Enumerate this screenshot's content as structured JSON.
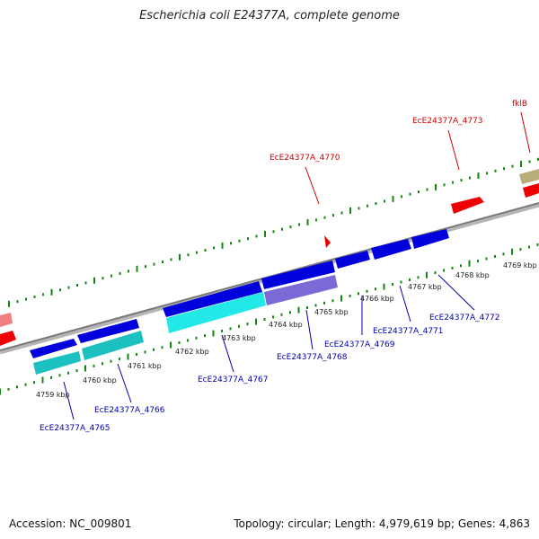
{
  "title": "Escherichia coli E24377A, complete genome",
  "footer": {
    "accession": "Accession: NC_009801",
    "summary": "Topology: circular; Length: 4,979,619 bp; Genes: 4,863"
  },
  "colors": {
    "forward_label": "#cc0000",
    "reverse_label": "#0000aa",
    "tick": "#118811",
    "backbone": "#8c8c8c"
  },
  "kbp_labels": [
    "4759 kbp",
    "4760 kbp",
    "4761 kbp",
    "4762 kbp",
    "4763 kbp",
    "4764 kbp",
    "4765 kbp",
    "4766 kbp",
    "4767 kbp",
    "4768 kbp",
    "4769 kbp"
  ],
  "forward_labels": [
    "EcE24377A_4770",
    "EcE24377A_4773",
    "fklB"
  ],
  "reverse_labels": [
    "EcE24377A_4765",
    "EcE24377A_4766",
    "EcE24377A_4767",
    "EcE24377A_4768",
    "EcE24377A_4769",
    "EcE24377A_4771",
    "EcE24377A_4772"
  ]
}
